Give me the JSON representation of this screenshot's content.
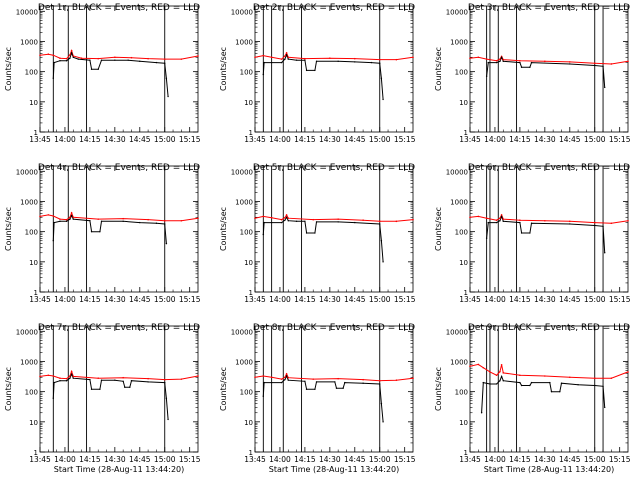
{
  "chart_data": {
    "type": "line",
    "y_scale": "log",
    "ylim": [
      1,
      15000
    ],
    "y_ticks": [
      1,
      10,
      100,
      1000,
      10000
    ],
    "y_tick_labels": [
      "1",
      "10",
      "100",
      "1000",
      "10000"
    ],
    "x_range_minutes": [
      0,
      95
    ],
    "x_ticks_minutes": [
      0,
      15,
      30,
      45,
      60,
      75,
      90
    ],
    "x_tick_labels": [
      "13:45",
      "14:00",
      "14:15",
      "14:30",
      "14:45",
      "15:00",
      "15:15"
    ],
    "ylabel": "Counts/sec",
    "xlabel": "Start Time (28-Aug-11 13:44:20)",
    "series_legend": [
      {
        "name": "Events",
        "color": "#000000"
      },
      {
        "name": "LLD",
        "color": "#ff0000"
      }
    ],
    "colors": {
      "events": "#000000",
      "lld": "#ff0000",
      "marker": "#000000"
    },
    "panels": [
      {
        "title": "Det 1r, BLACK = Events, RED = LLD",
        "show_xlabel": false,
        "markers": [
          8,
          17,
          28,
          75
        ],
        "events": [
          [
            8,
            60
          ],
          [
            8.5,
            200
          ],
          [
            12,
            230
          ],
          [
            16,
            230
          ],
          [
            18,
            280
          ],
          [
            19,
            420
          ],
          [
            20,
            300
          ],
          [
            23,
            260
          ],
          [
            30,
            240
          ],
          [
            31,
            120
          ],
          [
            35,
            120
          ],
          [
            37,
            240
          ],
          [
            45,
            240
          ],
          [
            53,
            240
          ],
          [
            60,
            220
          ],
          [
            70,
            200
          ],
          [
            75,
            190
          ],
          [
            76,
            60
          ],
          [
            77,
            15
          ]
        ],
        "lld": [
          [
            0,
            350
          ],
          [
            5,
            380
          ],
          [
            8,
            350
          ],
          [
            12,
            280
          ],
          [
            16,
            270
          ],
          [
            18,
            360
          ],
          [
            19,
            500
          ],
          [
            20,
            330
          ],
          [
            25,
            280
          ],
          [
            35,
            270
          ],
          [
            45,
            300
          ],
          [
            55,
            290
          ],
          [
            65,
            270
          ],
          [
            75,
            260
          ],
          [
            85,
            260
          ],
          [
            95,
            330
          ]
        ]
      },
      {
        "title": "Det 2r, BLACK = Events, RED = LLD",
        "show_xlabel": false,
        "markers": [
          5,
          10,
          17,
          28,
          75
        ],
        "events": [
          [
            5,
            80
          ],
          [
            5.5,
            200
          ],
          [
            10,
            200
          ],
          [
            16,
            200
          ],
          [
            18,
            260
          ],
          [
            19,
            360
          ],
          [
            20,
            260
          ],
          [
            25,
            240
          ],
          [
            30,
            240
          ],
          [
            31,
            110
          ],
          [
            36,
            110
          ],
          [
            37,
            220
          ],
          [
            50,
            220
          ],
          [
            60,
            210
          ],
          [
            70,
            200
          ],
          [
            75,
            190
          ],
          [
            76,
            60
          ],
          [
            77,
            12
          ]
        ],
        "lld": [
          [
            0,
            300
          ],
          [
            5,
            340
          ],
          [
            10,
            300
          ],
          [
            16,
            260
          ],
          [
            18,
            330
          ],
          [
            19,
            420
          ],
          [
            20,
            300
          ],
          [
            30,
            270
          ],
          [
            45,
            280
          ],
          [
            60,
            270
          ],
          [
            75,
            250
          ],
          [
            85,
            250
          ],
          [
            95,
            300
          ]
        ]
      },
      {
        "title": "Det 3r, BLACK = Events, RED = LLD",
        "show_xlabel": false,
        "markers": [
          10,
          12,
          17,
          28,
          75,
          80
        ],
        "events": [
          [
            10,
            70
          ],
          [
            11,
            200
          ],
          [
            16,
            200
          ],
          [
            18,
            220
          ],
          [
            19,
            300
          ],
          [
            20,
            220
          ],
          [
            30,
            200
          ],
          [
            31,
            140
          ],
          [
            36,
            140
          ],
          [
            37,
            200
          ],
          [
            60,
            180
          ],
          [
            75,
            160
          ],
          [
            80,
            150
          ],
          [
            81,
            30
          ]
        ],
        "lld": [
          [
            0,
            280
          ],
          [
            5,
            300
          ],
          [
            10,
            260
          ],
          [
            16,
            230
          ],
          [
            18,
            260
          ],
          [
            19,
            320
          ],
          [
            20,
            250
          ],
          [
            30,
            230
          ],
          [
            45,
            220
          ],
          [
            60,
            210
          ],
          [
            75,
            190
          ],
          [
            85,
            180
          ],
          [
            95,
            220
          ]
        ]
      },
      {
        "title": "Det 4r, BLACK = Events, RED = LLD",
        "show_xlabel": false,
        "markers": [
          8,
          17,
          28,
          75
        ],
        "events": [
          [
            8,
            50
          ],
          [
            8.5,
            200
          ],
          [
            12,
            220
          ],
          [
            16,
            220
          ],
          [
            18,
            260
          ],
          [
            19,
            340
          ],
          [
            20,
            260
          ],
          [
            30,
            230
          ],
          [
            31,
            100
          ],
          [
            36,
            100
          ],
          [
            37,
            220
          ],
          [
            50,
            220
          ],
          [
            60,
            200
          ],
          [
            70,
            190
          ],
          [
            75,
            180
          ],
          [
            76,
            40
          ]
        ],
        "lld": [
          [
            0,
            320
          ],
          [
            5,
            360
          ],
          [
            8,
            330
          ],
          [
            12,
            260
          ],
          [
            16,
            250
          ],
          [
            18,
            300
          ],
          [
            19,
            420
          ],
          [
            20,
            300
          ],
          [
            35,
            260
          ],
          [
            50,
            270
          ],
          [
            65,
            250
          ],
          [
            75,
            230
          ],
          [
            85,
            230
          ],
          [
            95,
            280
          ]
        ]
      },
      {
        "title": "Det 5r, BLACK = Events, RED = LLD",
        "show_xlabel": false,
        "markers": [
          5,
          10,
          17,
          28,
          75
        ],
        "events": [
          [
            5,
            80
          ],
          [
            5.5,
            200
          ],
          [
            10,
            200
          ],
          [
            16,
            200
          ],
          [
            18,
            240
          ],
          [
            19,
            300
          ],
          [
            20,
            230
          ],
          [
            25,
            220
          ],
          [
            30,
            220
          ],
          [
            31,
            90
          ],
          [
            36,
            90
          ],
          [
            37,
            210
          ],
          [
            50,
            210
          ],
          [
            60,
            200
          ],
          [
            75,
            180
          ],
          [
            76,
            50
          ],
          [
            77,
            10
          ]
        ],
        "lld": [
          [
            0,
            280
          ],
          [
            5,
            320
          ],
          [
            10,
            290
          ],
          [
            16,
            250
          ],
          [
            18,
            290
          ],
          [
            19,
            360
          ],
          [
            20,
            280
          ],
          [
            35,
            250
          ],
          [
            50,
            260
          ],
          [
            65,
            240
          ],
          [
            75,
            220
          ],
          [
            85,
            220
          ],
          [
            95,
            250
          ]
        ]
      },
      {
        "title": "Det 6r, BLACK = Events, RED = LLD",
        "show_xlabel": false,
        "markers": [
          10,
          12,
          17,
          28,
          75,
          80
        ],
        "events": [
          [
            10,
            60
          ],
          [
            11,
            200
          ],
          [
            16,
            200
          ],
          [
            18,
            230
          ],
          [
            19,
            320
          ],
          [
            20,
            220
          ],
          [
            30,
            200
          ],
          [
            31,
            90
          ],
          [
            36,
            90
          ],
          [
            37,
            190
          ],
          [
            60,
            180
          ],
          [
            75,
            160
          ],
          [
            80,
            150
          ],
          [
            81,
            20
          ]
        ],
        "lld": [
          [
            0,
            300
          ],
          [
            5,
            320
          ],
          [
            10,
            280
          ],
          [
            16,
            240
          ],
          [
            18,
            280
          ],
          [
            19,
            360
          ],
          [
            20,
            260
          ],
          [
            30,
            240
          ],
          [
            45,
            230
          ],
          [
            60,
            220
          ],
          [
            75,
            200
          ],
          [
            85,
            190
          ],
          [
            95,
            230
          ]
        ]
      },
      {
        "title": "Det 7r, BLACK = Events, RED = LLD",
        "show_xlabel": true,
        "markers": [
          8,
          17,
          28,
          75
        ],
        "events": [
          [
            8,
            60
          ],
          [
            8.5,
            200
          ],
          [
            12,
            230
          ],
          [
            16,
            230
          ],
          [
            18,
            280
          ],
          [
            19,
            380
          ],
          [
            20,
            280
          ],
          [
            30,
            250
          ],
          [
            31,
            120
          ],
          [
            36,
            120
          ],
          [
            37,
            240
          ],
          [
            45,
            240
          ],
          [
            50,
            220
          ],
          [
            51,
            140
          ],
          [
            54,
            140
          ],
          [
            55,
            230
          ],
          [
            65,
            210
          ],
          [
            75,
            200
          ],
          [
            76,
            60
          ],
          [
            77,
            12
          ]
        ],
        "lld": [
          [
            0,
            320
          ],
          [
            5,
            350
          ],
          [
            8,
            330
          ],
          [
            12,
            280
          ],
          [
            16,
            270
          ],
          [
            18,
            330
          ],
          [
            19,
            470
          ],
          [
            20,
            320
          ],
          [
            35,
            280
          ],
          [
            50,
            290
          ],
          [
            65,
            270
          ],
          [
            75,
            250
          ],
          [
            85,
            260
          ],
          [
            95,
            330
          ]
        ]
      },
      {
        "title": "Det 8r, BLACK = Events, RED = LLD",
        "show_xlabel": true,
        "markers": [
          5,
          10,
          17,
          28,
          75
        ],
        "events": [
          [
            5,
            70
          ],
          [
            5.5,
            200
          ],
          [
            10,
            200
          ],
          [
            16,
            200
          ],
          [
            18,
            250
          ],
          [
            19,
            330
          ],
          [
            20,
            240
          ],
          [
            30,
            220
          ],
          [
            31,
            120
          ],
          [
            36,
            120
          ],
          [
            37,
            210
          ],
          [
            48,
            210
          ],
          [
            49,
            130
          ],
          [
            53,
            130
          ],
          [
            54,
            200
          ],
          [
            65,
            190
          ],
          [
            75,
            180
          ],
          [
            76,
            40
          ],
          [
            77,
            10
          ]
        ],
        "lld": [
          [
            0,
            300
          ],
          [
            5,
            330
          ],
          [
            10,
            300
          ],
          [
            16,
            260
          ],
          [
            18,
            300
          ],
          [
            19,
            390
          ],
          [
            20,
            290
          ],
          [
            35,
            260
          ],
          [
            50,
            270
          ],
          [
            65,
            250
          ],
          [
            75,
            230
          ],
          [
            85,
            240
          ],
          [
            95,
            280
          ]
        ]
      },
      {
        "title": "Det 9r, BLACK = Events, RED = LLD",
        "show_xlabel": true,
        "markers": [
          10,
          12,
          17,
          28,
          75,
          80
        ],
        "events": [
          [
            7,
            20
          ],
          [
            8,
            200
          ],
          [
            12,
            180
          ],
          [
            16,
            180
          ],
          [
            18,
            230
          ],
          [
            19,
            320
          ],
          [
            20,
            230
          ],
          [
            30,
            200
          ],
          [
            31,
            160
          ],
          [
            36,
            160
          ],
          [
            37,
            200
          ],
          [
            48,
            200
          ],
          [
            49,
            100
          ],
          [
            54,
            100
          ],
          [
            55,
            190
          ],
          [
            65,
            170
          ],
          [
            75,
            160
          ],
          [
            80,
            150
          ],
          [
            81,
            30
          ]
        ],
        "lld": [
          [
            0,
            700
          ],
          [
            5,
            800
          ],
          [
            8,
            620
          ],
          [
            12,
            450
          ],
          [
            16,
            350
          ],
          [
            18,
            460
          ],
          [
            19,
            780
          ],
          [
            20,
            420
          ],
          [
            30,
            350
          ],
          [
            45,
            330
          ],
          [
            60,
            300
          ],
          [
            75,
            280
          ],
          [
            85,
            280
          ],
          [
            95,
            450
          ]
        ]
      }
    ]
  }
}
